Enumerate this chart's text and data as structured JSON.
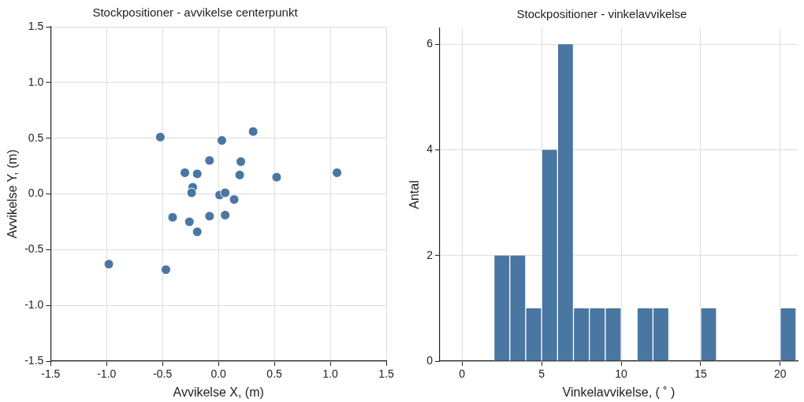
{
  "chart_data": [
    {
      "type": "scatter",
      "title": "Stockpositioner - avvikelse centerpunkt",
      "xlabel": "Avvikelse X, (m)",
      "ylabel": "Avvikelse Y, (m)",
      "x": [
        -0.52,
        0.31,
        0.03,
        -0.08,
        0.2,
        -0.3,
        -0.19,
        0.19,
        0.52,
        1.06,
        -0.23,
        -0.24,
        0.01,
        0.06,
        0.14,
        -0.41,
        -0.26,
        -0.08,
        0.06,
        -0.19,
        -0.98,
        -0.47
      ],
      "values": [
        0.51,
        0.56,
        0.48,
        0.3,
        0.29,
        0.19,
        0.18,
        0.17,
        0.15,
        0.19,
        0.06,
        0.01,
        -0.01,
        0.01,
        -0.05,
        -0.21,
        -0.25,
        -0.2,
        -0.19,
        -0.34,
        -0.63,
        -0.68
      ],
      "color": "#4a76a2",
      "marker": "circle",
      "xlim": [
        -1.5,
        1.5
      ],
      "ylim": [
        -1.5,
        1.5
      ],
      "xticks": [
        -1.5,
        {
          "value": -1,
          "label": "-1.0"
        },
        -0.5,
        {
          "value": 0,
          "label": "0.0"
        },
        0.5,
        {
          "value": 1,
          "label": "1.0"
        },
        1.5
      ],
      "yticks": [
        -1.5,
        {
          "value": -1,
          "label": "-1.0"
        },
        -0.5,
        {
          "value": 0,
          "label": "0.0"
        },
        0.5,
        {
          "value": 1,
          "label": "1.0"
        },
        1.5
      ],
      "grid": true
    },
    {
      "type": "histogram",
      "title": "Stockpositioner - vinkelavvikelse",
      "xlabel": "Vinkelavvikelse, ( ˚ )",
      "ylabel": "Antal",
      "bins": [
        2,
        3,
        4,
        5,
        6,
        7,
        8,
        9,
        10,
        11,
        12,
        13,
        14,
        15,
        16,
        17,
        18,
        19,
        20,
        21
      ],
      "values": [
        2,
        2,
        1,
        4,
        6,
        1,
        1,
        1,
        0,
        1,
        1,
        0,
        0,
        1,
        0,
        0,
        0,
        0,
        1
      ],
      "color": "#4a76a2",
      "xlim": [
        -1.4,
        21.1
      ],
      "ylim": [
        0,
        6.3
      ],
      "xticks": [
        0,
        5,
        10,
        15,
        20
      ],
      "yticks": [
        0,
        2,
        4,
        6
      ],
      "grid": true
    }
  ]
}
